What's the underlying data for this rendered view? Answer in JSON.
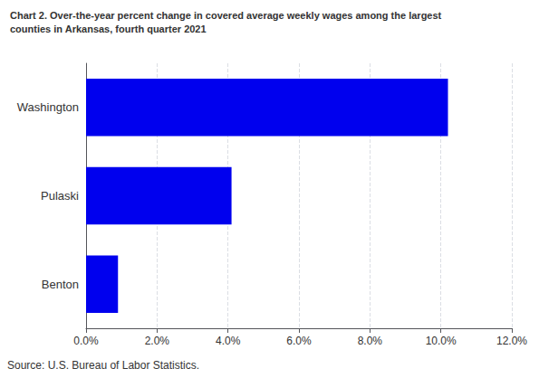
{
  "chart_data": {
    "type": "bar",
    "title": "Chart 2. Over-the-year percent change in covered average weekly wages among the largest",
    "subtitle": "counties in Arkansas, fourth quarter 2021",
    "annotations": [
      "Source: U.S. Bureau of Labor Statistics."
    ],
    "orientation": "horizontal",
    "categories": [
      "Benton",
      "Pulaski",
      "Washington"
    ],
    "values": [
      0.9,
      4.1,
      10.2
    ],
    "color": "#0000EE",
    "xlim": [
      0,
      12
    ],
    "xticks": [
      {
        "value": 0,
        "label": "0.0%"
      },
      {
        "value": 2,
        "label": "2.0%"
      },
      {
        "value": 4,
        "label": "4.0%"
      },
      {
        "value": 6,
        "label": "6.0%"
      },
      {
        "value": 8,
        "label": "8.0%"
      },
      {
        "value": 10,
        "label": "10.0%"
      },
      {
        "value": 12,
        "label": "12.0%"
      }
    ],
    "grid": true
  }
}
